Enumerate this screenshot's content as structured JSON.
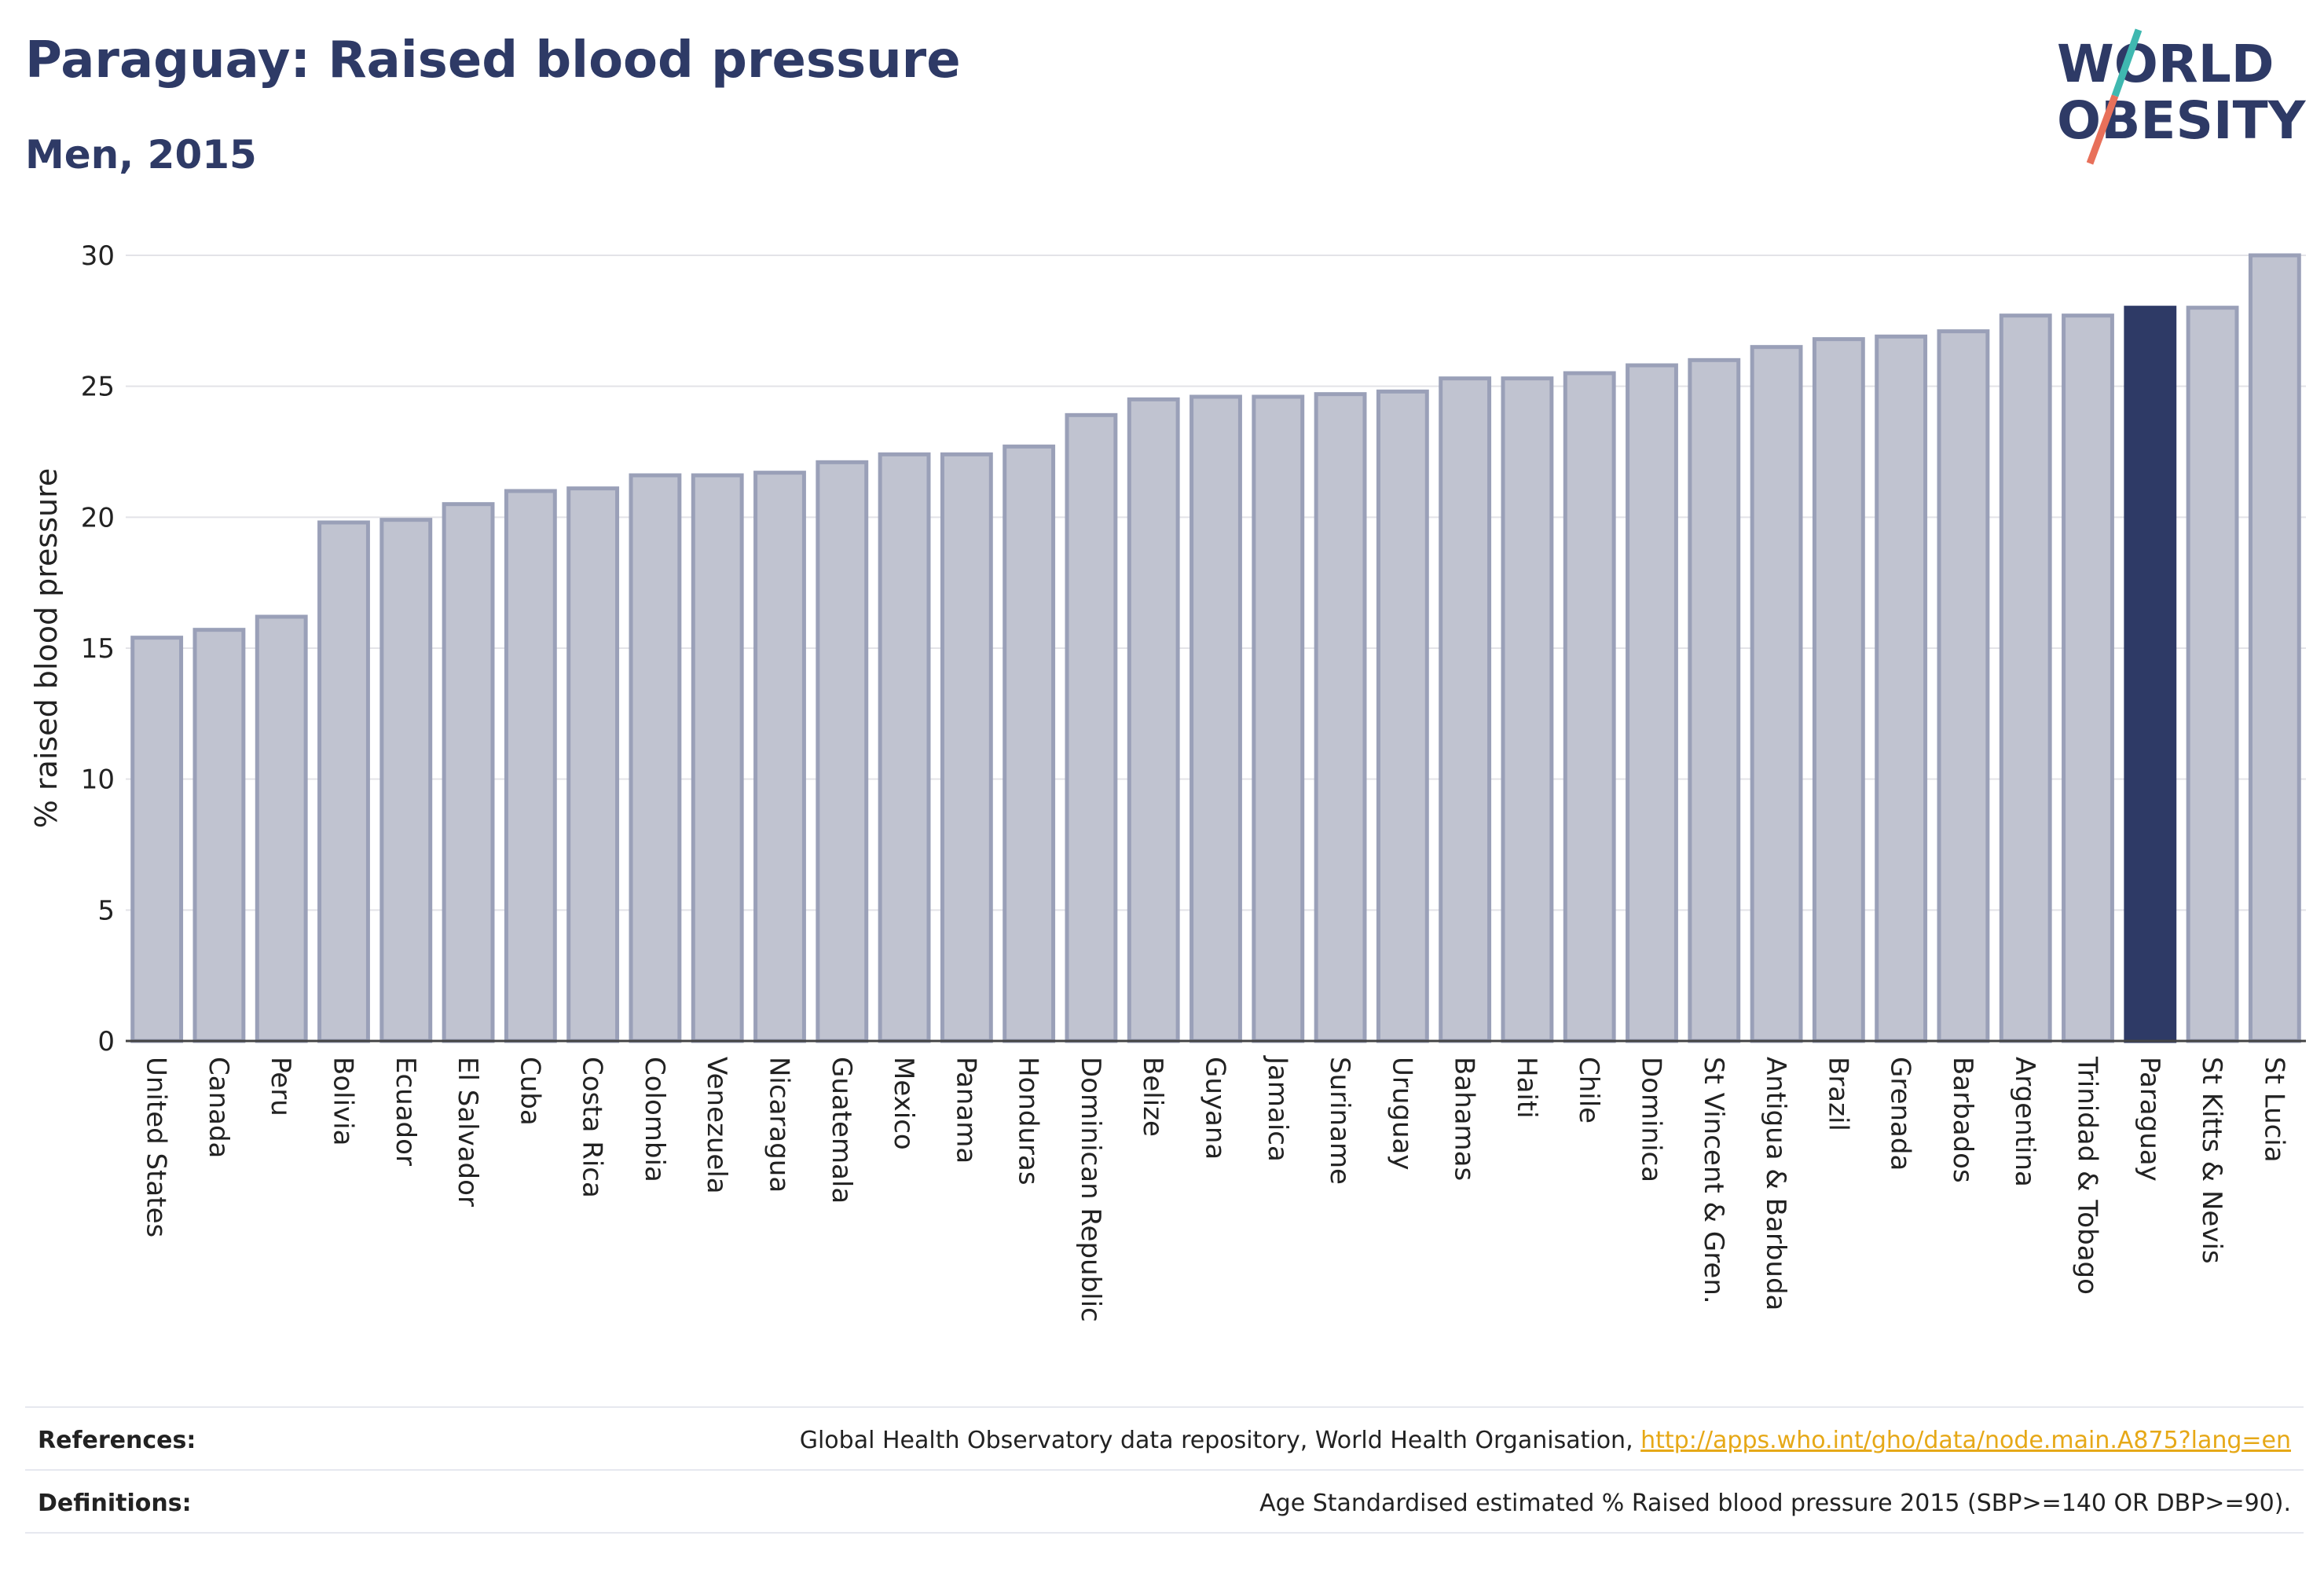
{
  "header": {
    "title": "Paraguay: Raised blood pressure",
    "subtitle": "Men, 2015"
  },
  "logo": {
    "line1": "WORLD",
    "line2": "OBESITY",
    "slash_colors": [
      "#3fb8b0",
      "#e8705a"
    ]
  },
  "footer": {
    "references_label": "References:",
    "references_text": "Global Health Observatory data repository, World Health Organisation, ",
    "references_link": "http://apps.who.int/gho/data/node.main.A875?lang=en",
    "definitions_label": "Definitions:",
    "definitions_text": "Age Standardised estimated % Raised blood pressure 2015 (SBP>=140 OR DBP>=90)."
  },
  "colors": {
    "bar_fill": "#c0c3d0",
    "bar_stroke": "#9aa0b8",
    "highlight": "#2e3a66",
    "grid": "#e3e3e8"
  },
  "chart_data": {
    "type": "bar",
    "title": "Paraguay: Raised blood pressure",
    "subtitle": "Men, 2015",
    "xlabel": "",
    "ylabel": "% raised blood pressure",
    "ylim": [
      0,
      30
    ],
    "yticks": [
      0,
      5,
      10,
      15,
      20,
      25,
      30
    ],
    "grid": true,
    "highlight_category": "Paraguay",
    "categories": [
      "United States",
      "Canada",
      "Peru",
      "Bolivia",
      "Ecuador",
      "El Salvador",
      "Cuba",
      "Costa Rica",
      "Colombia",
      "Venezuela",
      "Nicaragua",
      "Guatemala",
      "Mexico",
      "Panama",
      "Honduras",
      "Dominican Republic",
      "Belize",
      "Guyana",
      "Jamaica",
      "Suriname",
      "Uruguay",
      "Bahamas",
      "Haiti",
      "Chile",
      "Dominica",
      "St Vincent & Gren.",
      "Antigua & Barbuda",
      "Brazil",
      "Grenada",
      "Barbados",
      "Argentina",
      "Trinidad & Tobago",
      "Paraguay",
      "St Kitts & Nevis",
      "St Lucia"
    ],
    "values": [
      15.4,
      15.7,
      16.2,
      19.8,
      19.9,
      20.5,
      21.0,
      21.1,
      21.6,
      21.6,
      21.7,
      22.1,
      22.4,
      22.4,
      22.7,
      23.9,
      24.5,
      24.6,
      24.6,
      24.7,
      24.8,
      25.3,
      25.3,
      25.5,
      25.8,
      26.0,
      26.5,
      26.8,
      26.9,
      27.1,
      27.7,
      27.7,
      28.0,
      28.0,
      30.0
    ]
  }
}
